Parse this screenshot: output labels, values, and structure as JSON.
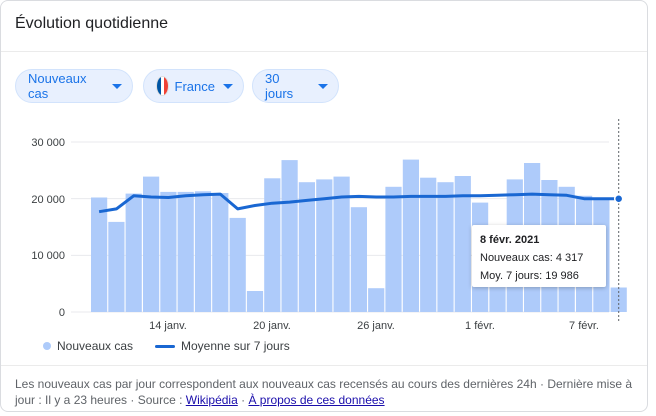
{
  "card": {
    "title": "Évolution quotidienne"
  },
  "filters": {
    "metric": "Nouveaux cas",
    "country": "France",
    "period": "30 jours"
  },
  "colors": {
    "bar": "#aecbfa",
    "line": "#1967d2",
    "accent": "#1a73e8",
    "flag_blue": "#0055a4",
    "flag_red": "#ef4135"
  },
  "chart_data": {
    "type": "bar",
    "x": [
      "9 janv.",
      "10 janv.",
      "11 janv.",
      "12 janv.",
      "13 janv.",
      "14 janv.",
      "15 janv.",
      "16 janv.",
      "17 janv.",
      "18 janv.",
      "19 janv.",
      "20 janv.",
      "21 janv.",
      "22 janv.",
      "23 janv.",
      "24 janv.",
      "25 janv.",
      "26 janv.",
      "27 janv.",
      "28 janv.",
      "29 janv.",
      "30 janv.",
      "31 janv.",
      "1 févr.",
      "2 févr.",
      "3 févr.",
      "4 févr.",
      "5 févr.",
      "6 févr.",
      "7 févr.",
      "8 févr."
    ],
    "xticks": [
      "14 janv.",
      "20 janv.",
      "26 janv.",
      "1 févr.",
      "7 févr."
    ],
    "yticks": [
      "0",
      "10 000",
      "20 000",
      "30 000"
    ],
    "ylim": [
      0,
      30000
    ],
    "series": [
      {
        "name": "Nouveaux cas",
        "type": "bar",
        "values": [
          20200,
          15900,
          20900,
          23900,
          21200,
          21200,
          21300,
          21000,
          16600,
          3700,
          23600,
          26800,
          22900,
          23400,
          23900,
          18500,
          4200,
          22100,
          26900,
          23700,
          22900,
          24000,
          19300,
          4400,
          23400,
          26300,
          23300,
          22100,
          20500,
          20100,
          4317
        ]
      },
      {
        "name": "Moyenne sur 7 jours",
        "type": "line",
        "values": [
          17700,
          18200,
          20500,
          20300,
          20200,
          20500,
          20700,
          20800,
          18200,
          18800,
          19200,
          19400,
          19700,
          20000,
          20300,
          20400,
          20300,
          20300,
          20400,
          20400,
          20400,
          20500,
          20500,
          20600,
          20700,
          20800,
          20700,
          20600,
          20000,
          20000,
          19986
        ]
      }
    ],
    "grid": true,
    "legend": "bottom-left"
  },
  "tooltip": {
    "date": "8 févr. 2021",
    "cases_label": "Nouveaux cas: 4 317",
    "avg_label": "Moy. 7 jours: 19 986"
  },
  "legend": {
    "bars": "Nouveaux cas",
    "line": "Moyenne sur 7 jours"
  },
  "footer": {
    "text": "Les nouveaux cas par jour correspondent aux nouveaux cas recensés au cours des dernières 24h · Dernière mise à jour : Il y a 23 heures · Source : ",
    "source_link": "Wikipédia",
    "separator": " · ",
    "about_link": "À propos de ces données"
  }
}
